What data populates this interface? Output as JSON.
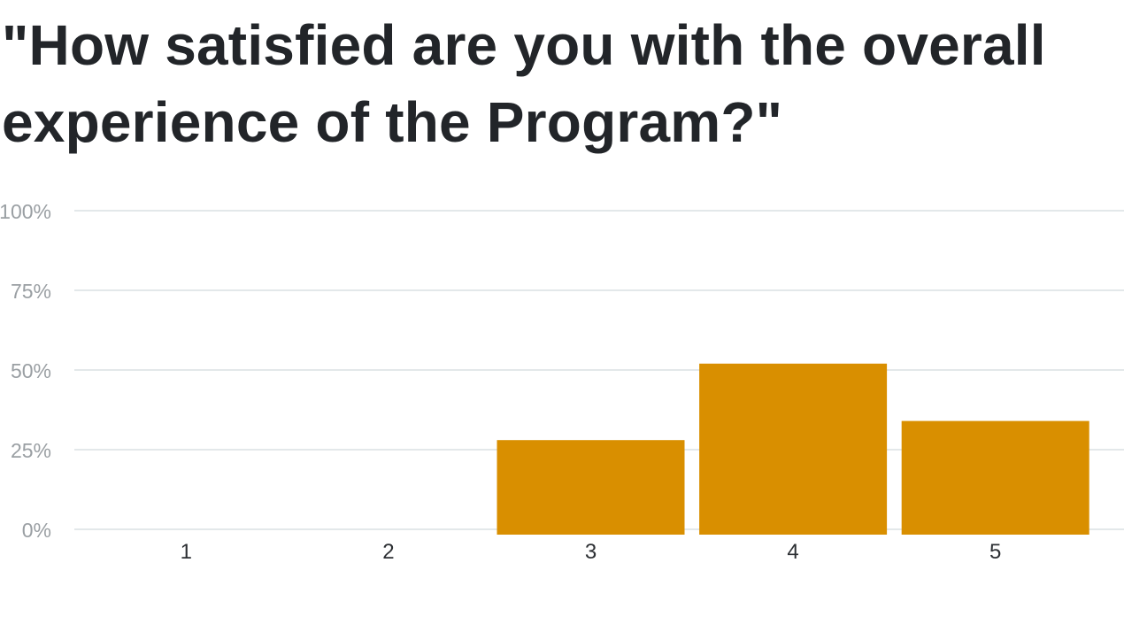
{
  "chart_data": {
    "type": "bar",
    "title": "\"How satisfied are you with the overall experience of the Program?\"",
    "xlabel": "",
    "ylabel": "",
    "categories": [
      "1",
      "2",
      "3",
      "4",
      "5"
    ],
    "values": [
      0,
      0,
      28,
      52,
      34
    ],
    "ylim": [
      0,
      100
    ],
    "yticks": [
      0,
      25,
      50,
      75,
      100
    ],
    "ytick_labels": [
      "0%",
      "25%",
      "50%",
      "75%",
      "100%"
    ],
    "grid": true,
    "legend": "none",
    "bar_color": "#d98f00"
  }
}
